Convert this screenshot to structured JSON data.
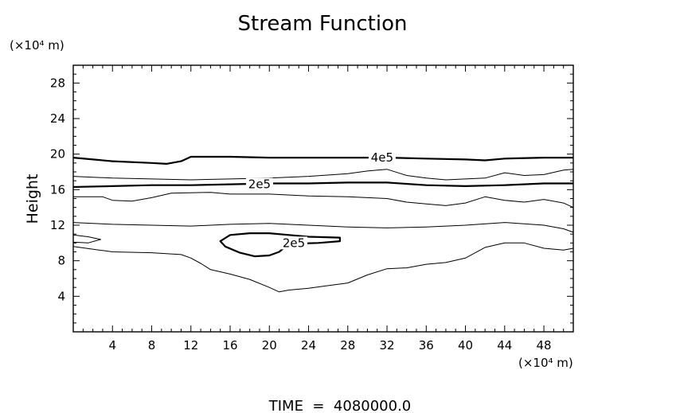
{
  "chart_data": {
    "type": "contour",
    "title": "Stream Function",
    "ylabel": "Height",
    "xlabel": "",
    "x_unit": "(×10⁴ m)",
    "y_unit": "(×10⁴ m)",
    "footer": "TIME  =  4080000.0",
    "xlim": [
      0,
      51
    ],
    "ylim": [
      0,
      30
    ],
    "x_ticks": [
      4,
      8,
      12,
      16,
      20,
      24,
      28,
      32,
      36,
      40,
      44,
      48
    ],
    "y_ticks": [
      4,
      8,
      12,
      16,
      20,
      24,
      28
    ],
    "grid": false,
    "contours": [
      {
        "label": "4e5",
        "emphasis": "bold",
        "points": [
          [
            0,
            19.6
          ],
          [
            4,
            19.2
          ],
          [
            8,
            19.0
          ],
          [
            9.5,
            18.9
          ],
          [
            11,
            19.2
          ],
          [
            12,
            19.7
          ],
          [
            16,
            19.7
          ],
          [
            20,
            19.6
          ],
          [
            24,
            19.6
          ],
          [
            28,
            19.6
          ],
          [
            32,
            19.6
          ],
          [
            36,
            19.5
          ],
          [
            40,
            19.4
          ],
          [
            42,
            19.3
          ],
          [
            44,
            19.5
          ],
          [
            48,
            19.6
          ],
          [
            51,
            19.6
          ]
        ]
      },
      {
        "label": "",
        "emphasis": "thin",
        "points": [
          [
            0,
            17.5
          ],
          [
            4,
            17.3
          ],
          [
            8,
            17.2
          ],
          [
            12,
            17.1
          ],
          [
            16,
            17.2
          ],
          [
            20,
            17.3
          ],
          [
            24,
            17.5
          ],
          [
            28,
            17.8
          ],
          [
            30,
            18.1
          ],
          [
            32,
            18.3
          ],
          [
            34,
            17.6
          ],
          [
            36,
            17.3
          ],
          [
            38,
            17.1
          ],
          [
            40,
            17.2
          ],
          [
            42,
            17.3
          ],
          [
            44,
            17.9
          ],
          [
            46,
            17.6
          ],
          [
            48,
            17.7
          ],
          [
            50,
            18.2
          ],
          [
            51,
            18.3
          ]
        ]
      },
      {
        "label": "2e5",
        "emphasis": "bold",
        "points": [
          [
            0,
            16.3
          ],
          [
            4,
            16.4
          ],
          [
            8,
            16.5
          ],
          [
            12,
            16.5
          ],
          [
            16,
            16.6
          ],
          [
            20,
            16.7
          ],
          [
            24,
            16.7
          ],
          [
            28,
            16.8
          ],
          [
            32,
            16.8
          ],
          [
            36,
            16.5
          ],
          [
            40,
            16.4
          ],
          [
            44,
            16.5
          ],
          [
            48,
            16.7
          ],
          [
            51,
            16.7
          ]
        ]
      },
      {
        "label": "",
        "emphasis": "thin",
        "points": [
          [
            0,
            15.2
          ],
          [
            3,
            15.2
          ],
          [
            4,
            14.8
          ],
          [
            6,
            14.7
          ],
          [
            8,
            15.1
          ],
          [
            10,
            15.6
          ],
          [
            14,
            15.7
          ],
          [
            16,
            15.5
          ],
          [
            20,
            15.5
          ],
          [
            24,
            15.3
          ],
          [
            28,
            15.2
          ],
          [
            32,
            15.0
          ],
          [
            34,
            14.6
          ],
          [
            36,
            14.4
          ],
          [
            38,
            14.2
          ],
          [
            40,
            14.5
          ],
          [
            42,
            15.2
          ],
          [
            44,
            14.8
          ],
          [
            46,
            14.6
          ],
          [
            48,
            14.9
          ],
          [
            50,
            14.5
          ],
          [
            51,
            14.0
          ]
        ]
      },
      {
        "label": "",
        "emphasis": "thin",
        "points": [
          [
            0,
            12.3
          ],
          [
            4,
            12.1
          ],
          [
            8,
            12.0
          ],
          [
            12,
            11.9
          ],
          [
            16,
            12.1
          ],
          [
            20,
            12.2
          ],
          [
            24,
            12.0
          ],
          [
            28,
            11.8
          ],
          [
            32,
            11.7
          ],
          [
            36,
            11.8
          ],
          [
            40,
            12.0
          ],
          [
            44,
            12.3
          ],
          [
            48,
            12.0
          ],
          [
            50,
            11.6
          ],
          [
            51,
            11.2
          ]
        ]
      },
      {
        "label": "",
        "emphasis": "thin",
        "points": [
          [
            0,
            9.6
          ],
          [
            4,
            9.0
          ],
          [
            8,
            8.9
          ],
          [
            11,
            8.7
          ],
          [
            12,
            8.3
          ],
          [
            13,
            7.7
          ],
          [
            14,
            7.0
          ],
          [
            16,
            6.5
          ],
          [
            18,
            5.9
          ],
          [
            20,
            5.0
          ],
          [
            21,
            4.5
          ],
          [
            22,
            4.7
          ],
          [
            24,
            4.9
          ],
          [
            26,
            5.2
          ],
          [
            28,
            5.5
          ],
          [
            30,
            6.4
          ],
          [
            32,
            7.1
          ],
          [
            34,
            7.2
          ],
          [
            36,
            7.6
          ],
          [
            38,
            7.8
          ],
          [
            40,
            8.3
          ],
          [
            42,
            9.5
          ],
          [
            44,
            10.0
          ],
          [
            46,
            10.0
          ],
          [
            48,
            9.4
          ],
          [
            50,
            9.2
          ],
          [
            51,
            9.4
          ]
        ]
      },
      {
        "label": "",
        "emphasis": "thin",
        "closed": true,
        "points": [
          [
            0,
            10.9
          ],
          [
            1.5,
            10.7
          ],
          [
            2.8,
            10.4
          ],
          [
            1.5,
            10.0
          ],
          [
            0,
            10.1
          ]
        ]
      },
      {
        "label": "2e5",
        "emphasis": "bold",
        "closed": true,
        "points": [
          [
            15,
            10.2
          ],
          [
            16,
            10.9
          ],
          [
            18,
            11.1
          ],
          [
            20,
            11.1
          ],
          [
            22,
            10.9
          ],
          [
            24,
            10.7
          ],
          [
            27.2,
            10.6
          ],
          [
            27.2,
            10.2
          ],
          [
            25,
            10.0
          ],
          [
            22,
            9.9
          ],
          [
            21,
            9.0
          ],
          [
            20,
            8.6
          ],
          [
            18.5,
            8.5
          ],
          [
            17,
            8.9
          ],
          [
            15.5,
            9.6
          ]
        ]
      }
    ]
  }
}
